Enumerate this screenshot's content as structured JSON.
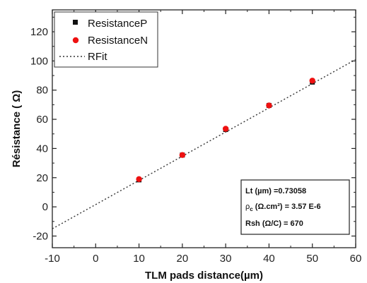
{
  "chart_data": {
    "type": "scatter",
    "xlabel": "TLM pads distance(µm)",
    "ylabel": "Résistance ( Ω)",
    "xlim": [
      -10,
      60
    ],
    "ylim": [
      -28,
      135
    ],
    "x_ticks": [
      -10,
      0,
      10,
      20,
      30,
      40,
      50,
      60
    ],
    "y_ticks": [
      -20,
      0,
      20,
      40,
      60,
      80,
      100,
      120
    ],
    "grid": false,
    "legend_position": "top-left",
    "series": [
      {
        "name": "ResistanceP",
        "marker": "square",
        "color": "#111111",
        "x": [
          10,
          20,
          30,
          40,
          50
        ],
        "y": [
          18.5,
          35.5,
          53,
          69.5,
          85.5
        ]
      },
      {
        "name": "ResistanceN",
        "marker": "circle",
        "color": "#ee1111",
        "x": [
          10,
          20,
          30,
          40,
          50
        ],
        "y": [
          19,
          35.5,
          53.5,
          69.5,
          86.5
        ]
      },
      {
        "name": "RFit",
        "type": "line",
        "style": "dotted",
        "color": "#333333",
        "x": [
          -10,
          60
        ],
        "y": [
          -15,
          101
        ]
      }
    ],
    "annotation": {
      "line1": "Lt (µm) =0.73058",
      "line2_rho": "ρ",
      "line2_sub": "c",
      "line2_rest": " (Ω.cm²) = 3.57 E-6",
      "line3": "Rsh (Ω/C) = 670"
    }
  }
}
